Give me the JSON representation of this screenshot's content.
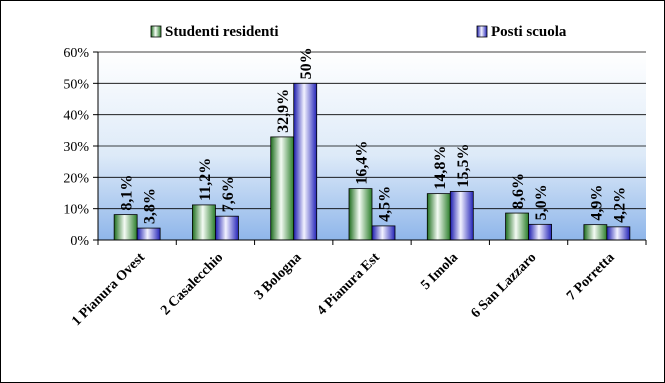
{
  "chart_data": {
    "type": "bar",
    "categories": [
      "1 Pianura Ovest",
      "2 Casalecchio",
      "3 Bologna",
      "4 Pianura Est",
      "5 Imola",
      "6 San Lazzaro",
      "7 Porretta"
    ],
    "series": [
      {
        "name": "Studenti residenti",
        "values": [
          8.1,
          11.2,
          32.9,
          16.4,
          14.8,
          8.6,
          4.9
        ],
        "labels": [
          "8,1%",
          "11,2%",
          "32,9%",
          "16,4%",
          "14,8%",
          "8,6%",
          "4,9%"
        ],
        "color": "#3f9a3f"
      },
      {
        "name": "Posti scuola",
        "values": [
          3.8,
          7.6,
          50,
          4.5,
          15.5,
          5.0,
          4.2
        ],
        "labels": [
          "3,8%",
          "7,6%",
          "50%",
          "4,5%",
          "15,5%",
          "5,0%",
          "4,2%"
        ],
        "color": "#3636c8"
      }
    ],
    "y_ticks": [
      "0%",
      "10%",
      "20%",
      "30%",
      "40%",
      "50%",
      "60%"
    ],
    "ylim": [
      0,
      60
    ],
    "grid": true,
    "legend_position": "top",
    "plot_background": "sky-blue gradient"
  }
}
